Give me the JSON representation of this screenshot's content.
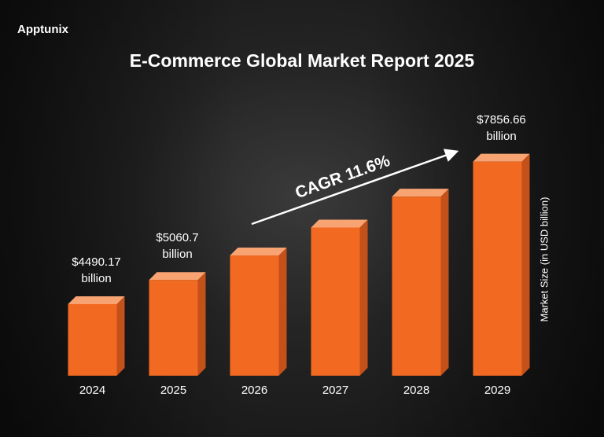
{
  "brand": "Apptunix",
  "chart_data": {
    "type": "bar",
    "title": "E-Commerce Global Market Report 2025",
    "annotation": "CAGR  11.6%",
    "y_label": "Market Size (in USD billion)",
    "categories": [
      "2024",
      "2025",
      "2026",
      "2027",
      "2028",
      "2029"
    ],
    "values": [
      4490.17,
      5060.7,
      5640,
      6300,
      7030,
      7856.66
    ],
    "value_labels": [
      "$4490.17 billion",
      "$5060.7 billion",
      null,
      null,
      null,
      "$7856.66 billion"
    ],
    "color": "#f26a21",
    "ylim": [
      2800,
      8500
    ]
  }
}
